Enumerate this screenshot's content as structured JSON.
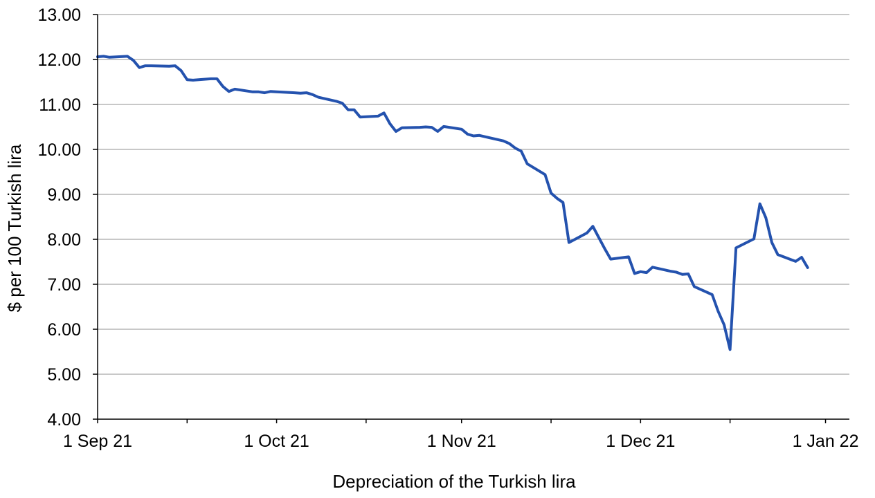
{
  "chart_data": {
    "type": "line",
    "title": "",
    "xlabel": "Depreciation  of the Turkish lira",
    "ylabel": "$ per 100 Turkish lira",
    "ylim": [
      4,
      13
    ],
    "yticks": [
      "4.00",
      "5.00",
      "6.00",
      "7.00",
      "8.00",
      "9.00",
      "10.00",
      "11.00",
      "12.00",
      "13.00"
    ],
    "xlim": [
      "2021-09-01",
      "2022-01-05"
    ],
    "xtick_labels": [
      {
        "date": "2021-09-01",
        "label": "1 Sep 21"
      },
      {
        "date": "2021-10-01",
        "label": "1 Oct 21"
      },
      {
        "date": "2021-11-01",
        "label": "1 Nov 21"
      },
      {
        "date": "2021-12-01",
        "label": "1 Dec 21"
      },
      {
        "date": "2022-01-01",
        "label": "1 Jan 22"
      }
    ],
    "xticks_minor": [
      "2021-09-16",
      "2021-10-16",
      "2021-11-16",
      "2021-12-16"
    ],
    "grid": true,
    "line_color": "#2452ae",
    "series": [
      {
        "name": "",
        "points": [
          [
            "2021-09-01",
            12.06
          ],
          [
            "2021-09-02",
            12.07
          ],
          [
            "2021-09-03",
            12.05
          ],
          [
            "2021-09-06",
            12.07
          ],
          [
            "2021-09-07",
            11.98
          ],
          [
            "2021-09-08",
            11.82
          ],
          [
            "2021-09-09",
            11.86
          ],
          [
            "2021-09-10",
            11.86
          ],
          [
            "2021-09-13",
            11.85
          ],
          [
            "2021-09-14",
            11.86
          ],
          [
            "2021-09-15",
            11.75
          ],
          [
            "2021-09-16",
            11.55
          ],
          [
            "2021-09-17",
            11.54
          ],
          [
            "2021-09-20",
            11.57
          ],
          [
            "2021-09-21",
            11.57
          ],
          [
            "2021-09-22",
            11.4
          ],
          [
            "2021-09-23",
            11.29
          ],
          [
            "2021-09-24",
            11.34
          ],
          [
            "2021-09-27",
            11.28
          ],
          [
            "2021-09-28",
            11.28
          ],
          [
            "2021-09-29",
            11.26
          ],
          [
            "2021-09-30",
            11.29
          ],
          [
            "2021-10-01",
            11.28
          ],
          [
            "2021-10-04",
            11.26
          ],
          [
            "2021-10-05",
            11.25
          ],
          [
            "2021-10-06",
            11.26
          ],
          [
            "2021-10-07",
            11.22
          ],
          [
            "2021-10-08",
            11.16
          ],
          [
            "2021-10-11",
            11.07
          ],
          [
            "2021-10-12",
            11.03
          ],
          [
            "2021-10-13",
            10.88
          ],
          [
            "2021-10-14",
            10.88
          ],
          [
            "2021-10-15",
            10.72
          ],
          [
            "2021-10-18",
            10.74
          ],
          [
            "2021-10-19",
            10.81
          ],
          [
            "2021-10-20",
            10.57
          ],
          [
            "2021-10-21",
            10.4
          ],
          [
            "2021-10-22",
            10.48
          ],
          [
            "2021-10-25",
            10.49
          ],
          [
            "2021-10-26",
            10.5
          ],
          [
            "2021-10-27",
            10.49
          ],
          [
            "2021-10-28",
            10.4
          ],
          [
            "2021-10-29",
            10.51
          ],
          [
            "2021-11-01",
            10.45
          ],
          [
            "2021-11-02",
            10.34
          ],
          [
            "2021-11-03",
            10.3
          ],
          [
            "2021-11-04",
            10.31
          ],
          [
            "2021-11-05",
            10.28
          ],
          [
            "2021-11-08",
            10.19
          ],
          [
            "2021-11-09",
            10.13
          ],
          [
            "2021-11-10",
            10.03
          ],
          [
            "2021-11-11",
            9.96
          ],
          [
            "2021-11-12",
            9.68
          ],
          [
            "2021-11-15",
            9.44
          ],
          [
            "2021-11-16",
            9.03
          ],
          [
            "2021-11-17",
            8.91
          ],
          [
            "2021-11-18",
            8.82
          ],
          [
            "2021-11-19",
            7.93
          ],
          [
            "2021-11-22",
            8.14
          ],
          [
            "2021-11-23",
            8.29
          ],
          [
            "2021-11-24",
            8.04
          ],
          [
            "2021-11-25",
            7.79
          ],
          [
            "2021-11-26",
            7.56
          ],
          [
            "2021-11-29",
            7.61
          ],
          [
            "2021-11-30",
            7.24
          ],
          [
            "2021-12-01",
            7.28
          ],
          [
            "2021-12-02",
            7.26
          ],
          [
            "2021-12-03",
            7.38
          ],
          [
            "2021-12-06",
            7.29
          ],
          [
            "2021-12-07",
            7.27
          ],
          [
            "2021-12-08",
            7.22
          ],
          [
            "2021-12-09",
            7.23
          ],
          [
            "2021-12-10",
            6.95
          ],
          [
            "2021-12-13",
            6.77
          ],
          [
            "2021-12-14",
            6.4
          ],
          [
            "2021-12-15",
            6.1
          ],
          [
            "2021-12-16",
            5.55
          ],
          [
            "2021-12-17",
            7.81
          ],
          [
            "2021-12-20",
            8.01
          ],
          [
            "2021-12-21",
            8.79
          ],
          [
            "2021-12-22",
            8.48
          ],
          [
            "2021-12-23",
            7.93
          ],
          [
            "2021-12-24",
            7.66
          ],
          [
            "2021-12-27",
            7.51
          ],
          [
            "2021-12-28",
            7.6
          ],
          [
            "2021-12-29",
            7.37
          ]
        ]
      }
    ]
  }
}
